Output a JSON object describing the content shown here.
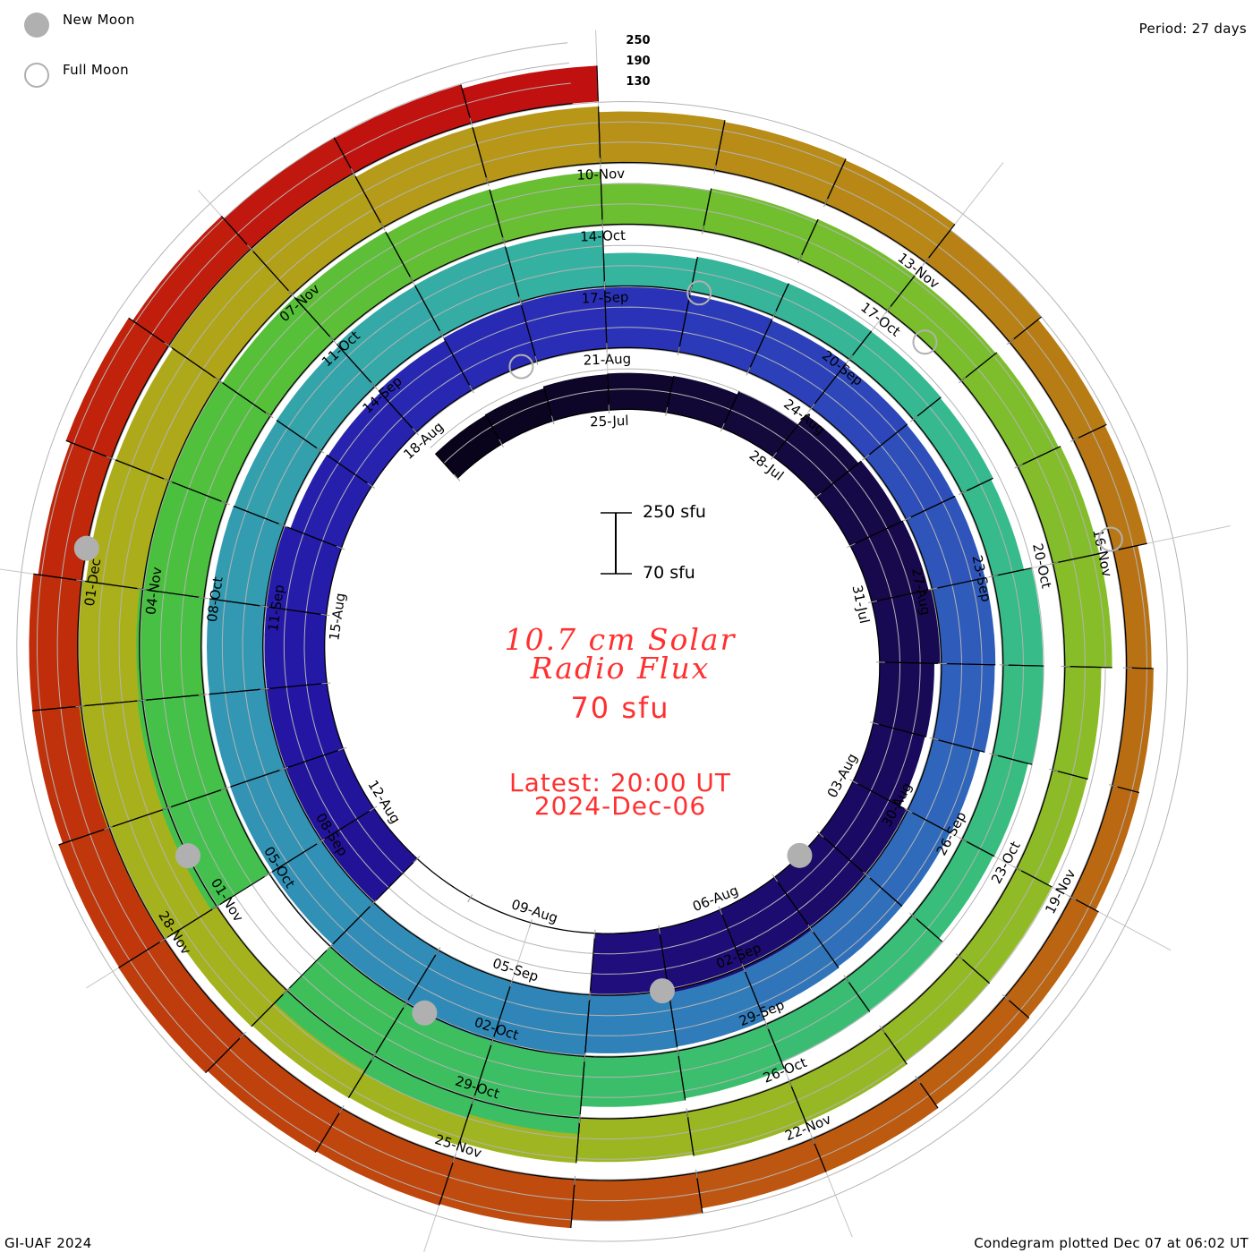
{
  "legend": {
    "new_moon": "New Moon",
    "full_moon": "Full Moon",
    "new_moon_color": "#b0b0b0",
    "full_moon_color": "#b0b0b0"
  },
  "header": {
    "period": "Period: 27 days"
  },
  "footer": {
    "left": "GI-UAF 2024",
    "right": "Condegram plotted Dec 07 at 06:02 UT"
  },
  "chart_data": {
    "type": "bar",
    "layout": "spiral condegram, clockwise, 27-day rotation",
    "title_lines": [
      "10.7 cm Solar",
      "Radio Flux"
    ],
    "current_value": "70 sfu",
    "latest_time": "Latest: 20:00 UT",
    "latest_date": "2024-Dec-06",
    "title_color": "#ff3030",
    "scale": {
      "top_label": "250 sfu",
      "bottom_label": "70 sfu",
      "min": 70,
      "max": 250
    },
    "ring_scale_labels": [
      "250",
      "190",
      "130"
    ],
    "grid_levels": [
      130,
      190,
      250
    ],
    "period_days": 27,
    "first_value_day_offset": -3,
    "value_unit": "sfu",
    "values": [
      168,
      170,
      176,
      178,
      180,
      190,
      228,
      238,
      242,
      250,
      232,
      228,
      252,
      256,
      260,
      262,
      255,
      null,
      null,
      null,
      250,
      252,
      250,
      248,
      250,
      232,
      228,
      236,
      245,
      248,
      252,
      242,
      238,
      230,
      228,
      230,
      230,
      228,
      214,
      212,
      212,
      216,
      240,
      242,
      250,
      256,
      252,
      244,
      240,
      238,
      236,
      230,
      228,
      230,
      238,
      240,
      236,
      168,
      174,
      176,
      175,
      172,
      165,
      188,
      190,
      178,
      175,
      188,
      192,
      212,
      218,
      300,
      312,
      305,
      null,
      272,
      268,
      262,
      255,
      252,
      242,
      238,
      232,
      228,
      192,
      198,
      202,
      200,
      204,
      210,
      210,
      178,
      176,
      188,
      192,
      200,
      202,
      198,
      204,
      214,
      216,
      220,
      255,
      258,
      252,
      240,
      238,
      255,
      252,
      240,
      238,
      221,
      216,
      212,
      190,
      178,
      172,
      144,
      150,
      152,
      162,
      165,
      176,
      176,
      190,
      214,
      218,
      222,
      230,
      228,
      215,
      214,
      200,
      214,
      200,
      190,
      188,
      176
    ],
    "date_labels": [
      "25-Jul",
      "28-Jul",
      "31-Jul",
      "03-Aug",
      "06-Aug",
      "09-Aug",
      "12-Aug",
      "15-Aug",
      "18-Aug",
      "21-Aug",
      "24-Aug",
      "27-Aug",
      "30-Aug",
      "02-Sep",
      "05-Sep",
      "08-Sep",
      "11-Sep",
      "14-Sep",
      "17-Sep",
      "20-Sep",
      "23-Sep",
      "26-Sep",
      "29-Sep",
      "02-Oct",
      "05-Oct",
      "08-Oct",
      "11-Oct",
      "14-Oct",
      "17-Oct",
      "20-Oct",
      "23-Oct",
      "26-Oct",
      "29-Oct",
      "01-Nov",
      "04-Nov",
      "07-Nov",
      "10-Nov",
      "13-Nov",
      "16-Nov",
      "19-Nov",
      "22-Nov",
      "25-Nov",
      "28-Nov",
      "01-Dec"
    ],
    "date_label_step_days": 3,
    "moons": {
      "new_moon_days": [
        10.47,
        40.08,
        69.78,
        99.53,
        129.26
      ],
      "full_moon_days": [
        25.77,
        55.1,
        84.48,
        113.9
      ]
    },
    "palette": [
      {
        "day": -3,
        "color": "#080418"
      },
      {
        "day": 3,
        "color": "#14093e"
      },
      {
        "day": 10,
        "color": "#1c0a66"
      },
      {
        "day": 20,
        "color": "#2416a6"
      },
      {
        "day": 27,
        "color": "#2a30b8"
      },
      {
        "day": 33,
        "color": "#2f58bb"
      },
      {
        "day": 42,
        "color": "#3088b8"
      },
      {
        "day": 48,
        "color": "#339ab3"
      },
      {
        "day": 54,
        "color": "#35b3a0"
      },
      {
        "day": 60,
        "color": "#37bb8a"
      },
      {
        "day": 69,
        "color": "#3cbf62"
      },
      {
        "day": 75,
        "color": "#48c040"
      },
      {
        "day": 81,
        "color": "#6abf30"
      },
      {
        "day": 87,
        "color": "#85bd2a"
      },
      {
        "day": 96,
        "color": "#a0b420"
      },
      {
        "day": 102,
        "color": "#aab01a"
      },
      {
        "day": 108,
        "color": "#b89418"
      },
      {
        "day": 114,
        "color": "#b87414"
      },
      {
        "day": 123,
        "color": "#bf4a0e"
      },
      {
        "day": 129,
        "color": "#c02a0a"
      },
      {
        "day": 134,
        "color": "#c01010"
      }
    ]
  }
}
